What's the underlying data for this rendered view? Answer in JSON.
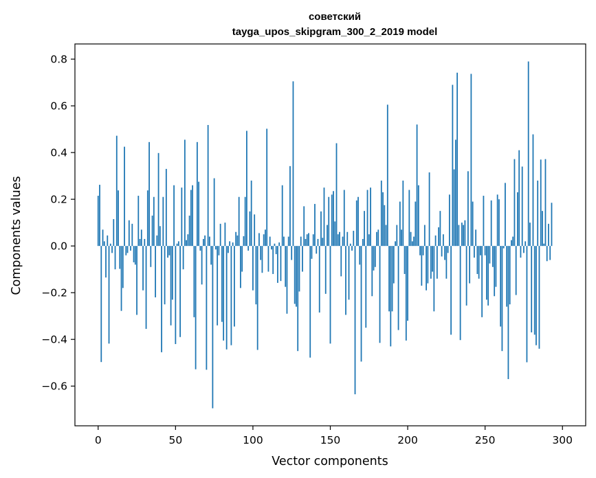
{
  "chart_data": {
    "type": "bar",
    "title": "советский",
    "subtitle": "tayga_upos_skipgram_300_2_2019 model",
    "xlabel": "Vector components",
    "ylabel": "Components values",
    "xlim": [
      -15,
      315
    ],
    "ylim": [
      -0.77,
      0.865
    ],
    "xticks": [
      0,
      50,
      100,
      150,
      200,
      250,
      300
    ],
    "xtick_labels": [
      "0",
      "50",
      "100",
      "150",
      "200",
      "250",
      "300"
    ],
    "yticks": [
      -0.6,
      -0.4,
      -0.2,
      0.0,
      0.2,
      0.4,
      0.6,
      0.8
    ],
    "ytick_labels": [
      "−0.6",
      "−0.4",
      "−0.2",
      "0.0",
      "0.2",
      "0.4",
      "0.6",
      "0.8"
    ],
    "grid": false,
    "colors": {
      "bar": "#1f77b4",
      "axis": "#000000"
    },
    "series": [
      {
        "values": [
          0.215,
          0.262,
          -0.497,
          0.07,
          0.02,
          -0.135,
          0.045,
          -0.418,
          0.01,
          -0.03,
          0.115,
          -0.1,
          0.472,
          0.238,
          -0.098,
          -0.278,
          -0.18,
          0.425,
          -0.04,
          -0.03,
          0.11,
          -0.02,
          0.095,
          -0.07,
          -0.08,
          -0.295,
          0.215,
          0.03,
          0.07,
          -0.19,
          0.03,
          -0.355,
          0.238,
          0.445,
          -0.09,
          0.13,
          0.21,
          -0.22,
          0.045,
          0.398,
          0.085,
          -0.455,
          0.21,
          -0.25,
          0.33,
          -0.05,
          -0.04,
          -0.34,
          -0.23,
          0.26,
          -0.42,
          0.01,
          0.02,
          -0.39,
          0.25,
          -0.1,
          0.455,
          0.025,
          0.05,
          0.13,
          0.24,
          0.26,
          -0.305,
          -0.528,
          0.445,
          0.275,
          -0.02,
          -0.165,
          0.03,
          0.045,
          -0.53,
          0.518,
          0.04,
          -0.08,
          -0.695,
          0.29,
          -0.015,
          -0.34,
          -0.04,
          0.095,
          -0.325,
          -0.405,
          0.1,
          -0.443,
          -0.03,
          0.02,
          -0.425,
          0.015,
          -0.345,
          0.06,
          0.045,
          0.21,
          -0.18,
          -0.11,
          0.042,
          0.21,
          0.493,
          -0.02,
          0.148,
          0.28,
          -0.19,
          0.135,
          -0.25,
          -0.445,
          0.055,
          -0.06,
          -0.115,
          0.05,
          0.07,
          0.502,
          -0.11,
          0.04,
          -0.015,
          -0.12,
          0.01,
          -0.035,
          -0.158,
          0.015,
          -0.15,
          0.26,
          0.04,
          -0.175,
          -0.29,
          0.04,
          0.342,
          -0.06,
          0.705,
          -0.248,
          -0.26,
          -0.45,
          -0.195,
          0.04,
          -0.11,
          0.17,
          0.03,
          0.05,
          0.055,
          -0.478,
          -0.055,
          0.05,
          0.18,
          -0.033,
          0.03,
          -0.285,
          0.148,
          0.035,
          0.25,
          -0.205,
          0.09,
          0.21,
          -0.418,
          0.22,
          0.235,
          0.105,
          0.44,
          0.05,
          0.06,
          -0.13,
          0.04,
          0.24,
          -0.295,
          0.06,
          -0.23,
          0.01,
          -0.02,
          0.065,
          -0.635,
          0.195,
          0.21,
          -0.08,
          -0.495,
          0.03,
          0.15,
          -0.35,
          0.24,
          0.05,
          0.25,
          -0.215,
          -0.105,
          -0.09,
          0.06,
          0.07,
          -0.415,
          0.28,
          0.23,
          0.175,
          0.09,
          0.605,
          -0.28,
          -0.43,
          -0.28,
          -0.16,
          0.02,
          0.09,
          -0.36,
          0.19,
          0.07,
          0.28,
          -0.12,
          -0.405,
          -0.32,
          0.24,
          0.06,
          0.02,
          0.04,
          0.19,
          0.52,
          0.26,
          -0.04,
          -0.17,
          -0.04,
          0.09,
          -0.19,
          -0.16,
          0.315,
          -0.14,
          -0.11,
          -0.28,
          0.045,
          -0.14,
          0.08,
          0.15,
          -0.045,
          0.05,
          -0.06,
          -0.14,
          -0.03,
          0.22,
          -0.38,
          0.69,
          0.328,
          0.455,
          0.742,
          0.09,
          -0.403,
          0.1,
          0.09,
          0.11,
          -0.255,
          0.32,
          -0.16,
          0.737,
          0.19,
          -0.05,
          0.07,
          -0.12,
          -0.14,
          -0.04,
          -0.305,
          0.215,
          -0.04,
          -0.23,
          -0.255,
          -0.075,
          0.195,
          -0.09,
          -0.215,
          -0.175,
          0.22,
          0.2,
          -0.345,
          -0.45,
          -0.01,
          0.27,
          -0.26,
          -0.57,
          -0.25,
          0.025,
          0.04,
          0.372,
          -0.21,
          0.23,
          0.41,
          -0.05,
          0.34,
          -0.03,
          0.02,
          -0.498,
          0.79,
          0.1,
          -0.37,
          0.478,
          -0.38,
          -0.425,
          0.28,
          -0.44,
          0.37,
          0.15,
          0.01,
          0.372,
          -0.065,
          0.095,
          -0.06,
          0.185
        ]
      }
    ]
  }
}
